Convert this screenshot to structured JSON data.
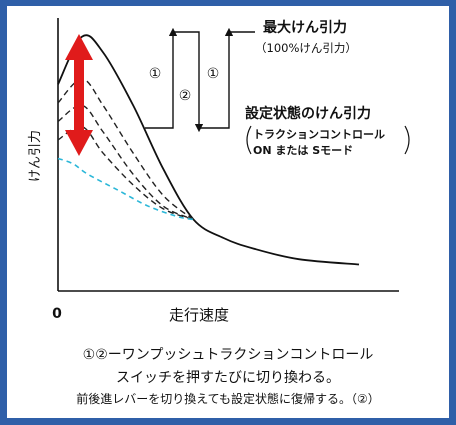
{
  "colors": {
    "frame": "#2f5fa8",
    "curve": "#111111",
    "dashed": "#222222",
    "cyan": "#2bb7d8",
    "arrow": "#e01b1b"
  },
  "chart_data": {
    "type": "line",
    "xlabel": "走行速度",
    "ylabel": "けん引力",
    "x_origin_label": "0",
    "series": [
      {
        "name": "最大けん引力",
        "x": [
          0,
          0.08,
          0.15,
          0.25,
          0.35,
          0.45,
          0.55,
          0.65,
          0.8,
          1.0
        ],
        "y": [
          0.78,
          0.96,
          0.9,
          0.7,
          0.46,
          0.27,
          0.2,
          0.16,
          0.12,
          0.1
        ]
      },
      {
        "name": "",
        "x": [
          0,
          0.08,
          0.15,
          0.25,
          0.35,
          0.45
        ],
        "y": [
          0.71,
          0.8,
          0.7,
          0.52,
          0.36,
          0.27
        ]
      },
      {
        "name": "",
        "x": [
          0,
          0.08,
          0.15,
          0.25,
          0.35,
          0.45
        ],
        "y": [
          0.64,
          0.7,
          0.6,
          0.44,
          0.32,
          0.27
        ]
      },
      {
        "name": "",
        "x": [
          0,
          0.08,
          0.15,
          0.25,
          0.35,
          0.45
        ],
        "y": [
          0.57,
          0.62,
          0.52,
          0.4,
          0.31,
          0.27
        ]
      },
      {
        "name": "",
        "x": [
          0,
          0.05,
          0.1,
          0.2,
          0.3,
          0.4,
          0.45
        ],
        "y": [
          0.5,
          0.48,
          0.44,
          0.38,
          0.32,
          0.28,
          0.27
        ]
      }
    ],
    "annotations": {
      "max_title": "最大けん引力",
      "max_sub": "（100%けん引力）",
      "set_title": "設定状態のけん引力",
      "set_sub1": "トラクションコントロール",
      "set_sub2": "ON または Sモード",
      "step1a": "①",
      "step2": "②",
      "step1b": "①"
    }
  },
  "caption": {
    "line1": "①②ーワンプッシュトラクションコントロール",
    "line2": "スイッチを押すたびに切り換わる。",
    "line3": "前後進レバーを切り換えても設定状態に復帰する。（②）"
  }
}
